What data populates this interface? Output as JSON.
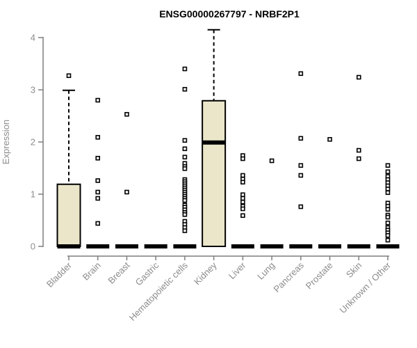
{
  "chart_data": {
    "type": "boxplot",
    "title": "ENSG00000267797 - NRBF2P1",
    "ylabel": "Expression",
    "xlabel": "",
    "y_ticks": [
      0,
      1,
      2,
      3,
      4
    ],
    "ylim": [
      0,
      4.3
    ],
    "grid": false,
    "legend": "none",
    "colors": {
      "box_fill": "#EBE6C9",
      "box_stroke": "#000000",
      "median": "#000000",
      "outlier_stroke": "#000000",
      "outlier_fill": "#ffffff",
      "axis": "#7f7f7f",
      "label_gray": "#8c8c8c",
      "title": "#000000",
      "background": "#ffffff"
    },
    "categories": [
      "Bladder",
      "Brain",
      "Breast",
      "Gastric",
      "Hematopoietic cells",
      "Kidney",
      "Liver",
      "Lung",
      "Pancreas",
      "Prostate",
      "Skin",
      "Unknown / Other"
    ],
    "groups": [
      {
        "category": "Bladder",
        "q1": 0,
        "median": 0,
        "q3": 1.19,
        "whisker_low": 0,
        "whisker_high": 2.99,
        "outliers": [
          3.27
        ]
      },
      {
        "category": "Brain",
        "q1": 0,
        "median": 0,
        "q3": 0,
        "whisker_low": 0,
        "whisker_high": 0,
        "outliers": [
          2.8,
          2.09,
          1.69,
          1.26,
          1.04,
          0.92,
          0.44
        ]
      },
      {
        "category": "Breast",
        "q1": 0,
        "median": 0,
        "q3": 0,
        "whisker_low": 0,
        "whisker_high": 0,
        "outliers": [
          2.53,
          1.04
        ]
      },
      {
        "category": "Gastric",
        "q1": 0,
        "median": 0,
        "q3": 0,
        "whisker_low": 0,
        "whisker_high": 0,
        "outliers": []
      },
      {
        "category": "Hematopoietic cells",
        "q1": 0,
        "median": 0,
        "q3": 0,
        "whisker_low": 0,
        "whisker_high": 0,
        "outliers": [
          3.4,
          3.01,
          2.03,
          1.87,
          1.71,
          1.59,
          1.53,
          1.49,
          1.28,
          1.24,
          1.2,
          1.16,
          1.12,
          1.08,
          1.04,
          1.0,
          0.96,
          0.92,
          0.88,
          0.79,
          0.75,
          0.7,
          0.65,
          0.61,
          0.48,
          0.42,
          0.36,
          0.3
        ]
      },
      {
        "category": "Kidney",
        "q1": 0,
        "median": 1.99,
        "q3": 2.79,
        "whisker_low": 0,
        "whisker_high": 4.15,
        "outliers": []
      },
      {
        "category": "Liver",
        "q1": 0,
        "median": 0,
        "q3": 0,
        "whisker_low": 0,
        "whisker_high": 0,
        "outliers": [
          1.74,
          1.68,
          1.36,
          1.29,
          1.23,
          0.99,
          0.92,
          0.85,
          0.77,
          0.72,
          0.59
        ]
      },
      {
        "category": "Lung",
        "q1": 0,
        "median": 0,
        "q3": 0,
        "whisker_low": 0,
        "whisker_high": 0,
        "outliers": [
          1.64
        ]
      },
      {
        "category": "Pancreas",
        "q1": 0,
        "median": 0,
        "q3": 0,
        "whisker_low": 0,
        "whisker_high": 0,
        "outliers": [
          3.31,
          2.07,
          1.55,
          1.36,
          0.76
        ]
      },
      {
        "category": "Prostate",
        "q1": 0,
        "median": 0,
        "q3": 0,
        "whisker_low": 0,
        "whisker_high": 0,
        "outliers": [
          2.05
        ]
      },
      {
        "category": "Skin",
        "q1": 0,
        "median": 0,
        "q3": 0,
        "whisker_low": 0,
        "whisker_high": 0,
        "outliers": [
          3.24,
          1.84,
          1.68
        ]
      },
      {
        "category": "Unknown / Other",
        "q1": 0,
        "median": 0,
        "q3": 0,
        "whisker_low": 0,
        "whisker_high": 0,
        "outliers": [
          1.55,
          1.43,
          1.34,
          1.28,
          1.22,
          1.16,
          1.1,
          1.03,
          0.83,
          0.77,
          0.71,
          0.6,
          0.56,
          0.45,
          0.36,
          0.31,
          0.26,
          0.21,
          0.12
        ]
      }
    ]
  }
}
